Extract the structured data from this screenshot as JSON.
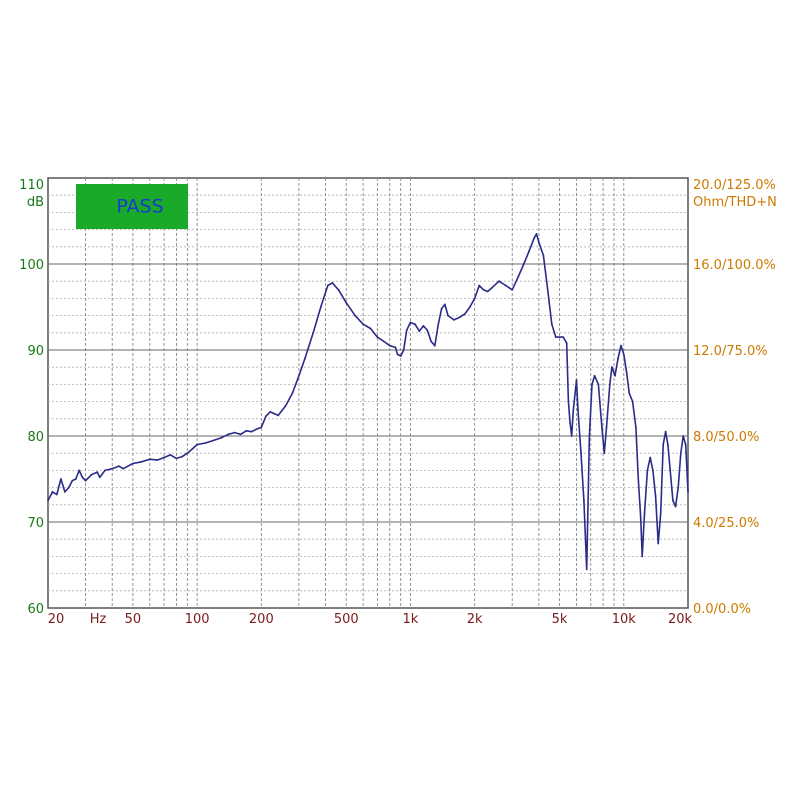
{
  "chart_data": {
    "type": "line",
    "status_badge": "PASS",
    "left_axis": {
      "label_lines": [
        "110",
        "dB"
      ],
      "ticks": [
        100,
        90,
        80,
        70,
        60
      ],
      "range": [
        60,
        110
      ],
      "color": "#1a7a1a"
    },
    "right_axis": {
      "label_lines": [
        "20.0/125.0%",
        "Ohm/THD+N"
      ],
      "ticks": [
        "16.0/100.0%",
        "12.0/75.0%",
        "8.0/50.0%",
        "4.0/25.0%",
        "0.0/0.0%"
      ],
      "color": "#cc7a00"
    },
    "x_axis": {
      "scale": "log",
      "range": [
        20,
        20000
      ],
      "unit_label": "Hz",
      "ticks": [
        {
          "value": 20,
          "label": "20"
        },
        {
          "value": 50,
          "label": "50"
        },
        {
          "value": 100,
          "label": "100"
        },
        {
          "value": 200,
          "label": "200"
        },
        {
          "value": 500,
          "label": "500"
        },
        {
          "value": 1000,
          "label": "1k"
        },
        {
          "value": 2000,
          "label": "2k"
        },
        {
          "value": 5000,
          "label": "5k"
        },
        {
          "value": 10000,
          "label": "10k"
        },
        {
          "value": 20000,
          "label": "20k"
        }
      ],
      "color": "#7a1a1a"
    },
    "grid": true,
    "series": [
      {
        "color": "#2b2b88",
        "points": [
          [
            20,
            72.5
          ],
          [
            21,
            73.5
          ],
          [
            22,
            73.2
          ],
          [
            23,
            75
          ],
          [
            24,
            73.5
          ],
          [
            25,
            74
          ],
          [
            26,
            74.8
          ],
          [
            27,
            75
          ],
          [
            28,
            76
          ],
          [
            29,
            75.2
          ],
          [
            30,
            74.8
          ],
          [
            32,
            75.5
          ],
          [
            34,
            75.8
          ],
          [
            35,
            75.2
          ],
          [
            37,
            76
          ],
          [
            40,
            76.2
          ],
          [
            43,
            76.5
          ],
          [
            45,
            76.2
          ],
          [
            50,
            76.8
          ],
          [
            55,
            77
          ],
          [
            60,
            77.3
          ],
          [
            65,
            77.2
          ],
          [
            70,
            77.5
          ],
          [
            75,
            77.8
          ],
          [
            80,
            77.4
          ],
          [
            85,
            77.6
          ],
          [
            90,
            78
          ],
          [
            95,
            78.5
          ],
          [
            100,
            79
          ],
          [
            110,
            79.2
          ],
          [
            120,
            79.5
          ],
          [
            130,
            79.8
          ],
          [
            140,
            80.2
          ],
          [
            150,
            80.4
          ],
          [
            160,
            80.2
          ],
          [
            170,
            80.6
          ],
          [
            180,
            80.5
          ],
          [
            190,
            80.8
          ],
          [
            200,
            81
          ],
          [
            210,
            82.3
          ],
          [
            220,
            82.8
          ],
          [
            240,
            82.4
          ],
          [
            260,
            83.5
          ],
          [
            280,
            85
          ],
          [
            300,
            87
          ],
          [
            320,
            89
          ],
          [
            350,
            92
          ],
          [
            380,
            95
          ],
          [
            410,
            97.5
          ],
          [
            430,
            97.8
          ],
          [
            460,
            97
          ],
          [
            500,
            95.5
          ],
          [
            550,
            94
          ],
          [
            600,
            93
          ],
          [
            650,
            92.5
          ],
          [
            700,
            91.5
          ],
          [
            750,
            91
          ],
          [
            800,
            90.5
          ],
          [
            850,
            90.3
          ],
          [
            870,
            89.5
          ],
          [
            900,
            89.3
          ],
          [
            930,
            90
          ],
          [
            960,
            92.3
          ],
          [
            1000,
            93.2
          ],
          [
            1050,
            93
          ],
          [
            1100,
            92.2
          ],
          [
            1150,
            92.8
          ],
          [
            1200,
            92.3
          ],
          [
            1250,
            91
          ],
          [
            1300,
            90.5
          ],
          [
            1350,
            93
          ],
          [
            1400,
            94.8
          ],
          [
            1450,
            95.3
          ],
          [
            1500,
            94
          ],
          [
            1600,
            93.5
          ],
          [
            1700,
            93.8
          ],
          [
            1800,
            94.2
          ],
          [
            1900,
            95
          ],
          [
            2000,
            96
          ],
          [
            2100,
            97.5
          ],
          [
            2200,
            97
          ],
          [
            2300,
            96.8
          ],
          [
            2400,
            97.2
          ],
          [
            2600,
            98
          ],
          [
            2800,
            97.5
          ],
          [
            3000,
            97
          ],
          [
            3200,
            98.5
          ],
          [
            3400,
            100
          ],
          [
            3600,
            101.5
          ],
          [
            3800,
            103
          ],
          [
            3900,
            103.5
          ],
          [
            4000,
            102.5
          ],
          [
            4200,
            101
          ],
          [
            4400,
            97
          ],
          [
            4600,
            93
          ],
          [
            4800,
            91.5
          ],
          [
            5200,
            91.5
          ],
          [
            5400,
            90.8
          ],
          [
            5500,
            84
          ],
          [
            5600,
            81.5
          ],
          [
            5700,
            80
          ],
          [
            5800,
            83
          ],
          [
            6000,
            86.5
          ],
          [
            6100,
            83
          ],
          [
            6300,
            78
          ],
          [
            6500,
            72.5
          ],
          [
            6700,
            64.5
          ],
          [
            6900,
            80
          ],
          [
            7100,
            86
          ],
          [
            7300,
            87
          ],
          [
            7600,
            86
          ],
          [
            7900,
            81
          ],
          [
            8100,
            78
          ],
          [
            8300,
            81
          ],
          [
            8600,
            86
          ],
          [
            8800,
            88
          ],
          [
            9100,
            87
          ],
          [
            9400,
            89
          ],
          [
            9700,
            90.5
          ],
          [
            10000,
            89.5
          ],
          [
            10300,
            87.5
          ],
          [
            10600,
            85
          ],
          [
            11000,
            84
          ],
          [
            11400,
            81
          ],
          [
            11700,
            75
          ],
          [
            12000,
            70.5
          ],
          [
            12200,
            66
          ],
          [
            12500,
            71
          ],
          [
            12900,
            76
          ],
          [
            13300,
            77.5
          ],
          [
            13700,
            76
          ],
          [
            14100,
            73
          ],
          [
            14500,
            67.5
          ],
          [
            14900,
            71
          ],
          [
            15300,
            79
          ],
          [
            15700,
            80.5
          ],
          [
            16100,
            79
          ],
          [
            16500,
            76
          ],
          [
            17000,
            72.5
          ],
          [
            17500,
            71.8
          ],
          [
            18000,
            74
          ],
          [
            18500,
            78
          ],
          [
            19000,
            80
          ],
          [
            19500,
            79
          ],
          [
            20000,
            73.5
          ]
        ]
      }
    ]
  }
}
